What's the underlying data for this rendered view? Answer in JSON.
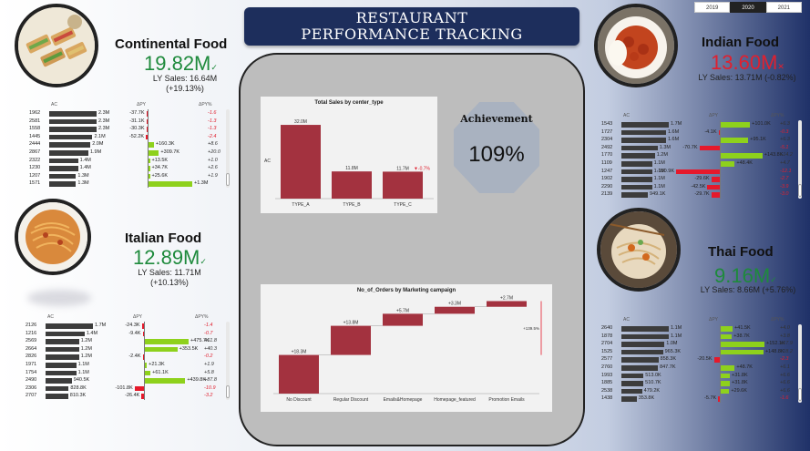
{
  "title": {
    "line1": "RESTAURANT",
    "line2": "PERFORMANCE TRACKING"
  },
  "year_slicer": {
    "options": [
      "2019",
      "2020",
      "2021"
    ],
    "selected": "2020"
  },
  "colors": {
    "bar_dark": "#3c3c3c",
    "positive": "#8ed11c",
    "negative": "#e5192b",
    "pos_text": "#1e8a3c",
    "neg_text": "#e0202f",
    "brand": "#1d2e5c",
    "maroon": "#a3323f"
  },
  "continental": {
    "title": "Continental Food",
    "kpi": "19.82M",
    "ly_sales": "LY Sales: 16.64M",
    "ly_change": "(+19.13%)",
    "headers": {
      "ac": "AC",
      "dpy": "ΔPY",
      "dpy_pct": "ΔPY%"
    },
    "rows": [
      {
        "id": "1962",
        "ac": "2.3M",
        "dpy": "-37.7K",
        "pct": "-1.6"
      },
      {
        "id": "2581",
        "ac": "2.3M",
        "dpy": "-31.1K",
        "pct": "-1.3"
      },
      {
        "id": "1558",
        "ac": "2.3M",
        "dpy": "-30.3K",
        "pct": "-1.3"
      },
      {
        "id": "1445",
        "ac": "2.1M",
        "dpy": "-52.2K",
        "pct": "-2.4"
      },
      {
        "id": "2444",
        "ac": "2.0M",
        "dpy": "+160.3K",
        "pct": "+8.6"
      },
      {
        "id": "2867",
        "ac": "1.9M",
        "dpy": "+309.7K",
        "pct": "+20.0"
      },
      {
        "id": "2322",
        "ac": "1.4M",
        "dpy": "+13.5K",
        "pct": "+1.0"
      },
      {
        "id": "1230",
        "ac": "1.4M",
        "dpy": "+34.7K",
        "pct": "+2.6"
      },
      {
        "id": "1207",
        "ac": "1.3M",
        "dpy": "+25.6K",
        "pct": "+1.9"
      },
      {
        "id": "1571",
        "ac": "1.3M",
        "dpy": "+1.3M",
        "pct": ""
      }
    ]
  },
  "italian": {
    "title": "Italian Food",
    "kpi": "12.89M",
    "ly_sales": "LY Sales: 11.71M",
    "ly_change": "(+10.13%)",
    "headers": {
      "ac": "AC",
      "dpy": "ΔPY",
      "dpy_pct": "ΔPY%"
    },
    "rows": [
      {
        "id": "2126",
        "ac": "1.7M",
        "dpy": "-24.3K",
        "pct": "-1.4"
      },
      {
        "id": "1216",
        "ac": "1.4M",
        "dpy": "-9.4K",
        "pct": "-0.7"
      },
      {
        "id": "2569",
        "ac": "1.2M",
        "dpy": "+475.7K",
        "pct": "+61.8"
      },
      {
        "id": "2664",
        "ac": "1.2M",
        "dpy": "+353.5K",
        "pct": "+40.3"
      },
      {
        "id": "2826",
        "ac": "1.2M",
        "dpy": "-2.4K",
        "pct": "-0.2"
      },
      {
        "id": "1971",
        "ac": "1.1M",
        "dpy": "+21.3K",
        "pct": "+1.9"
      },
      {
        "id": "1754",
        "ac": "1.1M",
        "dpy": "+61.1K",
        "pct": "+5.8"
      },
      {
        "id": "2490",
        "ac": "940.5K",
        "dpy": "+439.8K",
        "pct": "+87.8"
      },
      {
        "id": "2306",
        "ac": "828.8K",
        "dpy": "-101.8K",
        "pct": "-10.9"
      },
      {
        "id": "2707",
        "ac": "810.3K",
        "dpy": "-26.4K",
        "pct": "-3.2"
      }
    ]
  },
  "indian": {
    "title": "Indian Food",
    "kpi": "13.60M",
    "ly_sales": "LY Sales: 13.71M (-0.82%)",
    "headers": {
      "ac": "AC",
      "dpy": "ΔPY",
      "dpy_pct": "ΔPY%"
    },
    "rows": [
      {
        "id": "1543",
        "ac": "1.7M",
        "dpy": "+101.0K",
        "pct": "+6.3"
      },
      {
        "id": "1727",
        "ac": "1.6M",
        "dpy": "-4.1K",
        "pct": "-0.3"
      },
      {
        "id": "2304",
        "ac": "1.6M",
        "dpy": "+95.1K",
        "pct": "+6.3"
      },
      {
        "id": "2492",
        "ac": "1.3M",
        "dpy": "-70.7K",
        "pct": "-5.1"
      },
      {
        "id": "1770",
        "ac": "1.2M",
        "dpy": "+143.8K",
        "pct": "+14.2"
      },
      {
        "id": "1109",
        "ac": "1.1M",
        "dpy": "+48.4K",
        "pct": "+4.7"
      },
      {
        "id": "1247",
        "ac": "1.1M",
        "dpy": "-150.9K",
        "pct": "-12.1"
      },
      {
        "id": "1902",
        "ac": "1.1M",
        "dpy": "-29.6K",
        "pct": "-2.7"
      },
      {
        "id": "2290",
        "ac": "1.1M",
        "dpy": "-42.5K",
        "pct": "-3.9"
      },
      {
        "id": "2139",
        "ac": "949.1K",
        "dpy": "-29.7K",
        "pct": "-3.0"
      }
    ]
  },
  "thai": {
    "title": "Thai Food",
    "kpi": "9.16M",
    "ly_sales": "LY Sales: 8.66M (+5.76%)",
    "headers": {
      "ac": "AC",
      "dpy": "ΔPY",
      "dpy_pct": "ΔPY%"
    },
    "rows": [
      {
        "id": "2640",
        "ac": "1.1M",
        "dpy": "+41.5K",
        "pct": "+4.0"
      },
      {
        "id": "1878",
        "ac": "1.1M",
        "dpy": "+38.7K",
        "pct": "+3.8"
      },
      {
        "id": "2704",
        "ac": "1.0M",
        "dpy": "+152.1K",
        "pct": "+17.9"
      },
      {
        "id": "1525",
        "ac": "965.3K",
        "dpy": "+148.8K",
        "pct": "+18.2"
      },
      {
        "id": "2577",
        "ac": "858.3K",
        "dpy": "-20.5K",
        "pct": "-2.3"
      },
      {
        "id": "2760",
        "ac": "847.7K",
        "dpy": "+48.7K",
        "pct": "+6.1"
      },
      {
        "id": "1993",
        "ac": "513.0K",
        "dpy": "+31.8K",
        "pct": "+6.6"
      },
      {
        "id": "1885",
        "ac": "510.7K",
        "dpy": "+31.8K",
        "pct": "+6.6"
      },
      {
        "id": "2538",
        "ac": "479.2K",
        "dpy": "+29.6K",
        "pct": "+6.6"
      },
      {
        "id": "1438",
        "ac": "353.8K",
        "dpy": "-5.7K",
        "pct": "-1.6"
      }
    ]
  },
  "achievement": {
    "title": "Achievement",
    "value": "109%"
  },
  "chart_data": [
    {
      "type": "bar",
      "title": "Total Sales by center_type",
      "ylabel": "AC",
      "categories": [
        "TYPE_A",
        "TYPE_B",
        "TYPE_C"
      ],
      "values": [
        32.0,
        11.8,
        11.7
      ],
      "value_labels": [
        "32.0M",
        "11.8M",
        "11.7M"
      ],
      "annotation": "-0.7%",
      "ylim": [
        0,
        34
      ]
    },
    {
      "type": "bar",
      "subtype": "waterfall",
      "title": "No_of_Orders by Marketing campaign",
      "categories": [
        "No Discount",
        "Regular Discount",
        "Emails&Homepage",
        "Homepage_featured",
        "Promotion Emails"
      ],
      "values": [
        18.3,
        13.8,
        5.7,
        3.3,
        2.7
      ],
      "value_labels": [
        "+18.3M",
        "+13.8M",
        "+5.7M",
        "+3.3M",
        "+2.7M"
      ],
      "total_annotation": "+139.5%",
      "ylim": [
        0,
        44
      ]
    }
  ]
}
